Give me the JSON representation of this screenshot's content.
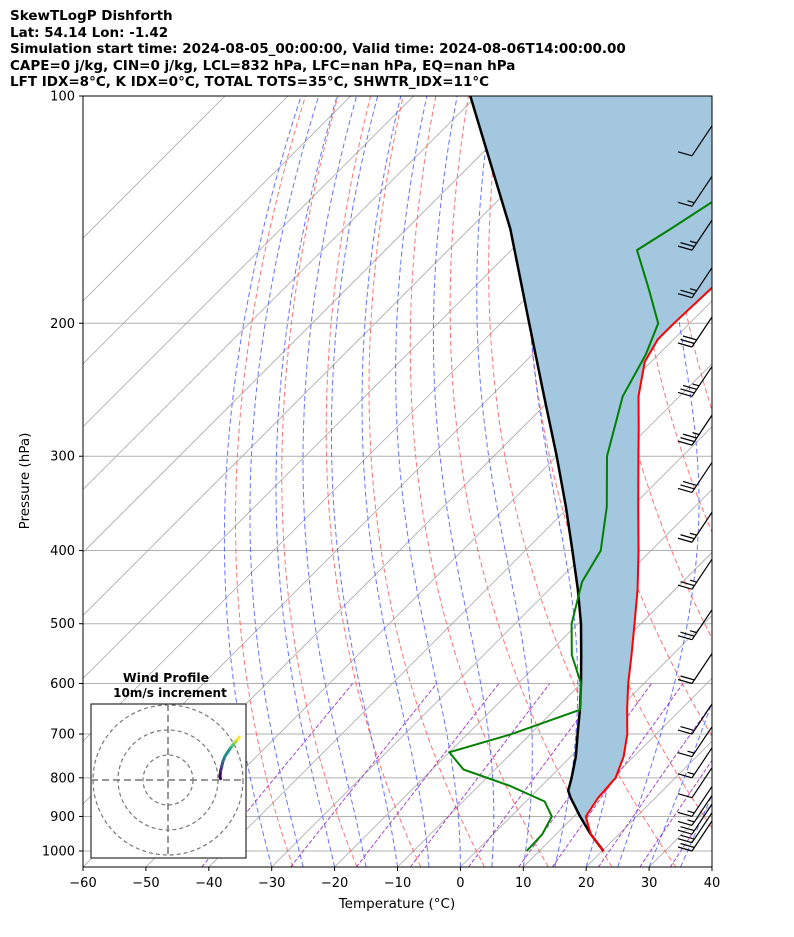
{
  "header": {
    "title": "SkewTLogP Dishforth",
    "latlon": "Lat: 54.14   Lon: -1.42",
    "times": "Simulation start time: 2024-08-05_00:00:00, Valid time: 2024-08-06T14:00:00.00",
    "cape": "CAPE=0 j/kg, CIN=0 j/kg, LCL=832 hPa, LFC=nan hPa, EQ=nan hPa",
    "indices": "LFT IDX=8$^\\circ$C, K IDX=0$^\\circ$C, TOTAL TOTS=35$^\\circ$C, SHWTR_IDX=11$^\\circ$C"
  },
  "colors": {
    "temperature": "#ff0000",
    "dewpoint": "#008000",
    "parcel": "#000000",
    "cape_fill": "#a3c7df",
    "dry_adiabat": "#ff5a5a",
    "moist_adiabat": "#4a5aff",
    "mixing_ratio": "#9b30c8",
    "isotherm": "#a8a8a8",
    "isobar": "#b0b0b0"
  },
  "chart_data": {
    "type": "line",
    "chart_kind": "skew-T log-P",
    "xlabel": "Temperature ($^\\circ$C)",
    "ylabel": "Pressure (hPa)",
    "xlim": [
      -60,
      40
    ],
    "ylim": [
      1050,
      100
    ],
    "y_scale": "log",
    "x_ticks": [
      "−60",
      "−50",
      "−40",
      "−30",
      "−20",
      "−10",
      "0",
      "10",
      "20",
      "30",
      "40"
    ],
    "y_ticks": [
      "100",
      "200",
      "300",
      "400",
      "500",
      "600",
      "700",
      "800",
      "900",
      "1000"
    ],
    "grid": true,
    "series": [
      {
        "role": "temperature",
        "points": [
          [
            1000,
            20.2
          ],
          [
            950,
            15.5
          ],
          [
            900,
            11.9
          ],
          [
            850,
            10.9
          ],
          [
            800,
            10.5
          ],
          [
            750,
            8.4
          ],
          [
            700,
            5.4
          ],
          [
            650,
            1.5
          ],
          [
            600,
            -2.5
          ],
          [
            550,
            -6.5
          ],
          [
            500,
            -11.0
          ],
          [
            450,
            -16.0
          ],
          [
            400,
            -22.0
          ],
          [
            350,
            -29.0
          ],
          [
            300,
            -37.0
          ],
          [
            275,
            -41.5
          ],
          [
            250,
            -46.5
          ],
          [
            225,
            -51.0
          ],
          [
            210,
            -52.5
          ],
          [
            200,
            -52.5
          ],
          [
            175,
            -52.0
          ],
          [
            150,
            -50.5
          ],
          [
            125,
            -49.5
          ],
          [
            100,
            -48.0
          ]
        ]
      },
      {
        "role": "dewpoint",
        "points": [
          [
            1000,
            8.0
          ],
          [
            950,
            7.8
          ],
          [
            900,
            6.5
          ],
          [
            860,
            3.0
          ],
          [
            820,
            -5.0
          ],
          [
            780,
            -15.0
          ],
          [
            740,
            -20.0
          ],
          [
            700,
            -13.0
          ],
          [
            650,
            -6.0
          ],
          [
            600,
            -10.0
          ],
          [
            550,
            -16.0
          ],
          [
            500,
            -21.0
          ],
          [
            440,
            -26.0
          ],
          [
            400,
            -28.0
          ],
          [
            350,
            -34.0
          ],
          [
            300,
            -42.0
          ],
          [
            250,
            -49.0
          ],
          [
            220,
            -52.0
          ],
          [
            200,
            -55.0
          ],
          [
            180,
            -62.0
          ],
          [
            160,
            -70.0
          ],
          [
            150,
            -68.0
          ],
          [
            130,
            -64.0
          ],
          [
            100,
            -58.0
          ]
        ]
      },
      {
        "role": "parcel",
        "points": [
          [
            1000,
            20.2
          ],
          [
            950,
            15.5
          ],
          [
            900,
            11.0
          ],
          [
            850,
            6.5
          ],
          [
            832,
            5.0
          ],
          [
            800,
            3.5
          ],
          [
            750,
            0.8
          ],
          [
            700,
            -2.5
          ],
          [
            650,
            -6.0
          ],
          [
            600,
            -10.0
          ],
          [
            550,
            -14.5
          ],
          [
            500,
            -19.5
          ],
          [
            450,
            -25.5
          ],
          [
            400,
            -32.5
          ],
          [
            350,
            -40.5
          ],
          [
            300,
            -50.0
          ],
          [
            250,
            -61.5
          ],
          [
            200,
            -75.5
          ],
          [
            150,
            -93.5
          ],
          [
            100,
            -121.0
          ]
        ]
      }
    ],
    "wind_barbs": [
      {
        "p": 1000,
        "speed_kt": 20
      },
      {
        "p": 975,
        "speed_kt": 20
      },
      {
        "p": 950,
        "speed_kt": 20
      },
      {
        "p": 925,
        "speed_kt": 15
      },
      {
        "p": 900,
        "speed_kt": 15
      },
      {
        "p": 850,
        "speed_kt": 10
      },
      {
        "p": 800,
        "speed_kt": 15
      },
      {
        "p": 750,
        "speed_kt": 15
      },
      {
        "p": 700,
        "speed_kt": 20
      },
      {
        "p": 600,
        "speed_kt": 20
      },
      {
        "p": 525,
        "speed_kt": 25
      },
      {
        "p": 450,
        "speed_kt": 25
      },
      {
        "p": 390,
        "speed_kt": 25
      },
      {
        "p": 335,
        "speed_kt": 30
      },
      {
        "p": 290,
        "speed_kt": 35
      },
      {
        "p": 250,
        "speed_kt": 35
      },
      {
        "p": 215,
        "speed_kt": 30
      },
      {
        "p": 185,
        "speed_kt": 25
      },
      {
        "p": 160,
        "speed_kt": 25
      },
      {
        "p": 140,
        "speed_kt": 15
      },
      {
        "p": 120,
        "speed_kt": 10
      }
    ],
    "hodograph": {
      "title": "Wind Profile",
      "subtitle": "10m/s increment",
      "ring_count": 3,
      "points": [
        [
          -0.3,
          0.05
        ],
        [
          -0.32,
          0.15
        ],
        [
          -0.3,
          0.35
        ],
        [
          -0.25,
          0.55
        ],
        [
          -0.2,
          0.75
        ],
        [
          -0.12,
          0.95
        ],
        [
          -0.02,
          1.1
        ],
        [
          0.08,
          1.25
        ],
        [
          0.18,
          1.38
        ],
        [
          0.28,
          1.5
        ],
        [
          0.38,
          1.62
        ],
        [
          0.45,
          1.72
        ]
      ]
    }
  }
}
